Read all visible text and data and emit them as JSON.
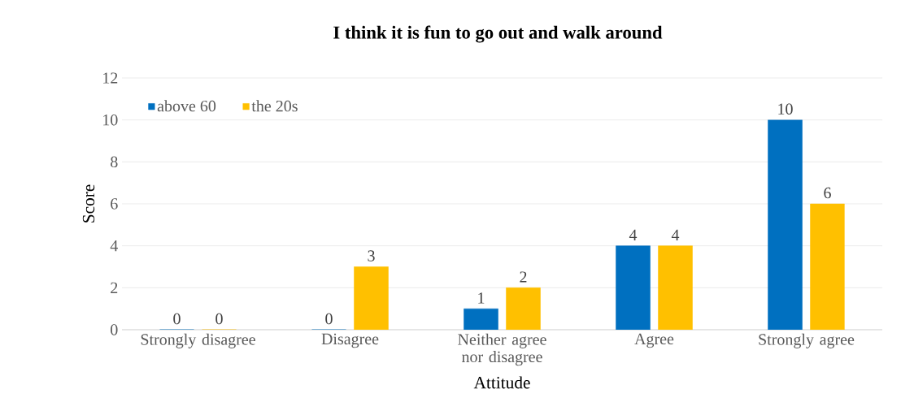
{
  "chart_data": {
    "type": "bar",
    "title": "I think it is fun to go out and walk around",
    "xlabel": "Attitude",
    "ylabel": "Score",
    "categories": [
      "Strongly disagree",
      "Disagree",
      "Neither agree nor disagree",
      "Agree",
      "Strongly agree"
    ],
    "series": [
      {
        "name": "above 60",
        "color": "#0070c0",
        "values": [
          0,
          0,
          1,
          4,
          10
        ]
      },
      {
        "name": "the 20s",
        "color": "#ffc000",
        "values": [
          0,
          3,
          2,
          4,
          6
        ]
      }
    ],
    "ylim": [
      0,
      12
    ],
    "yticks": [
      0,
      2,
      4,
      6,
      8,
      10,
      12
    ],
    "grid": "y",
    "legend": "top left",
    "data_labels": true
  }
}
